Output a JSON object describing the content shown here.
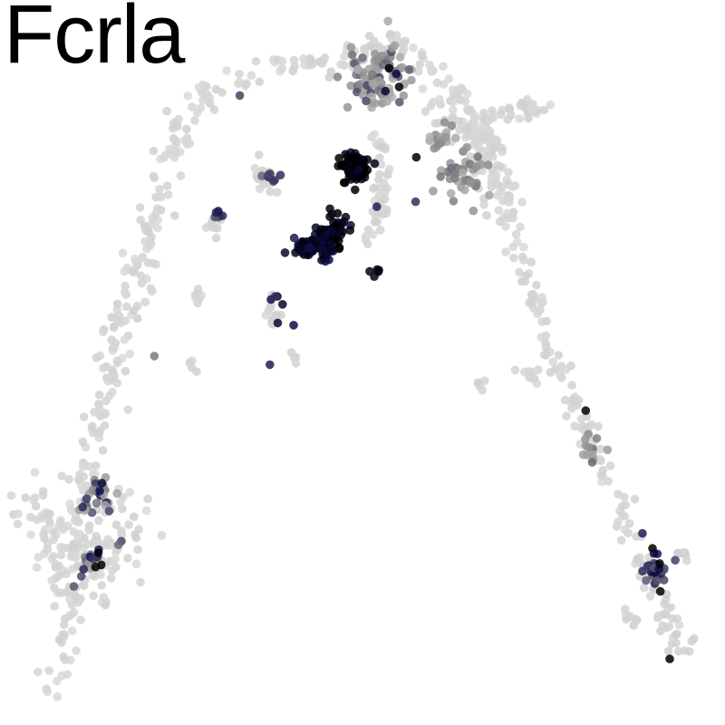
{
  "title": "Fcrla",
  "chart_data": {
    "type": "scatter",
    "title": "Fcrla",
    "xlabel": "",
    "ylabel": "",
    "axes_visible": false,
    "grid": false,
    "legend": "none",
    "xlim": [
      0,
      100
    ],
    "ylim": [
      0,
      100
    ],
    "color_scale": {
      "low": "#dcdcdc",
      "mid": "#8c8c8c",
      "high": "#0d0d4a",
      "max": "#000000"
    },
    "point_opacity": 0.85,
    "background_density": [
      {
        "path": [
          [
            54,
            95
          ],
          [
            52,
            93
          ],
          [
            47,
            92
          ],
          [
            40,
            91
          ],
          [
            34,
            90
          ],
          [
            29,
            88
          ],
          [
            25,
            83
          ],
          [
            23,
            78
          ],
          [
            21,
            71
          ],
          [
            19,
            63
          ],
          [
            17,
            56
          ],
          [
            15,
            49
          ],
          [
            14,
            43
          ],
          [
            12,
            37
          ],
          [
            11,
            30
          ],
          [
            10,
            23
          ],
          [
            9,
            15
          ],
          [
            8,
            9
          ],
          [
            7,
            4
          ]
        ],
        "n": 300,
        "spread": 1.1
      },
      {
        "path": [
          [
            54,
            95
          ],
          [
            57,
            93
          ],
          [
            61,
            90
          ],
          [
            65,
            86
          ],
          [
            68,
            80
          ],
          [
            70,
            72
          ],
          [
            72,
            65
          ],
          [
            74,
            58
          ],
          [
            77,
            50
          ],
          [
            80,
            43
          ],
          [
            83,
            36
          ],
          [
            86,
            29
          ],
          [
            89,
            22
          ],
          [
            92,
            15
          ],
          [
            95,
            9
          ]
        ],
        "n": 230,
        "spread": 0.8
      },
      {
        "path": [
          [
            60,
            88
          ],
          [
            66,
            80
          ],
          [
            69,
            73
          ]
        ],
        "n": 60,
        "spread": 1.6
      },
      {
        "path": [
          [
            64,
            82
          ],
          [
            68,
            84
          ],
          [
            72,
            85
          ],
          [
            75,
            86
          ]
        ],
        "n": 45,
        "spread": 0.8
      },
      {
        "path": [
          [
            4,
            31
          ],
          [
            6,
            28
          ],
          [
            8,
            24
          ],
          [
            10,
            20
          ],
          [
            12,
            18
          ],
          [
            14,
            22
          ],
          [
            16,
            27
          ],
          [
            17,
            31
          ]
        ],
        "n": 140,
        "spread": 2.0
      },
      {
        "path": [
          [
            52,
            82
          ],
          [
            53,
            76
          ],
          [
            52,
            70
          ],
          [
            51,
            66
          ]
        ],
        "n": 45,
        "spread": 0.8
      },
      {
        "path": [
          [
            35,
            77
          ],
          [
            37,
            75
          ],
          [
            38,
            73
          ]
        ],
        "n": 20,
        "spread": 0.7
      },
      {
        "path": [
          [
            29,
            70
          ],
          [
            30,
            68
          ]
        ],
        "n": 10,
        "spread": 0.5
      },
      {
        "path": [
          [
            27,
            60
          ],
          [
            28,
            58
          ]
        ],
        "n": 8,
        "spread": 0.5
      },
      {
        "path": [
          [
            36,
            59
          ],
          [
            38,
            57
          ],
          [
            37,
            55
          ]
        ],
        "n": 14,
        "spread": 0.6
      },
      {
        "path": [
          [
            40,
            51
          ],
          [
            41,
            50
          ]
        ],
        "n": 4,
        "spread": 0.4
      },
      {
        "path": [
          [
            26,
            50
          ],
          [
            27,
            49
          ]
        ],
        "n": 4,
        "spread": 0.4
      },
      {
        "path": [
          [
            72,
            49
          ],
          [
            73,
            48
          ],
          [
            74,
            49
          ]
        ],
        "n": 10,
        "spread": 0.6
      },
      {
        "path": [
          [
            66,
            47
          ],
          [
            67,
            47
          ]
        ],
        "n": 5,
        "spread": 0.4
      },
      {
        "path": [
          [
            87,
            15
          ],
          [
            88,
            14
          ]
        ],
        "n": 8,
        "spread": 0.5
      },
      {
        "path": [
          [
            94,
            24
          ],
          [
            95,
            23
          ]
        ],
        "n": 6,
        "spread": 0.4
      }
    ],
    "expression_clusters": [
      {
        "center": [
          52,
          90
        ],
        "n": 95,
        "spread": 2.2,
        "level": 0.48,
        "jitter": 0.22
      },
      {
        "center": [
          49,
          77
        ],
        "n": 75,
        "spread": 1.1,
        "level": 0.97,
        "jitter": 0.05
      },
      {
        "center": [
          46,
          68
        ],
        "n": 55,
        "spread": 1.1,
        "level": 0.95,
        "jitter": 0.06
      },
      {
        "center": [
          44,
          66
        ],
        "n": 40,
        "spread": 1.0,
        "level": 0.93,
        "jitter": 0.07
      },
      {
        "center": [
          42,
          66
        ],
        "n": 24,
        "spread": 0.8,
        "level": 0.9,
        "jitter": 0.08
      },
      {
        "center": [
          64,
          76
        ],
        "n": 40,
        "spread": 1.7,
        "level": 0.45,
        "jitter": 0.15
      },
      {
        "center": [
          61,
          81
        ],
        "n": 18,
        "spread": 1.2,
        "level": 0.38,
        "jitter": 0.15
      },
      {
        "center": [
          13,
          31
        ],
        "n": 24,
        "spread": 1.4,
        "level": 0.55,
        "jitter": 0.25
      },
      {
        "center": [
          12,
          23
        ],
        "n": 14,
        "spread": 1.0,
        "level": 0.6,
        "jitter": 0.25
      },
      {
        "center": [
          91,
          21
        ],
        "n": 24,
        "spread": 0.9,
        "level": 0.78,
        "jitter": 0.15
      },
      {
        "center": [
          82,
          38
        ],
        "n": 12,
        "spread": 1.0,
        "level": 0.45,
        "jitter": 0.15
      },
      {
        "center": [
          37,
          76
        ],
        "n": 7,
        "spread": 0.6,
        "level": 0.75,
        "jitter": 0.15
      },
      {
        "center": [
          30,
          70
        ],
        "n": 4,
        "spread": 0.4,
        "level": 0.7,
        "jitter": 0.1
      },
      {
        "center": [
          52,
          63
        ],
        "n": 4,
        "spread": 0.5,
        "level": 0.95,
        "jitter": 0.05
      },
      {
        "center": [
          38,
          59
        ],
        "n": 3,
        "spread": 0.5,
        "level": 0.9,
        "jitter": 0.05
      }
    ],
    "x": [
      53.7,
      54.7,
      55.1,
      53.2,
      57.5,
      32.9,
      36.8,
      57.4,
      52.0,
      49.5,
      51.0,
      39.2,
      37.8,
      40.4,
      38.2,
      37.1,
      29.9,
      29.6,
      81.1,
      82.0,
      89.0,
      90.4,
      90.6,
      91.3,
      91.4,
      91.5,
      92.8,
      13.7,
      13.4,
      14.7,
      13.2,
      12.8,
      13.6,
      16.4,
      16.0,
      9.8,
      21.0
    ],
    "y": [
      91.0,
      90.2,
      88.4,
      87.8,
      78.6,
      87.2,
      75.9,
      72.4,
      71.7,
      76.9,
      62.7,
      65.3,
      59.2,
      55.2,
      55.5,
      49.7,
      71.1,
      70.9,
      43.3,
      36.1,
      26.2,
      24.1,
      23.4,
      21.2,
      22.0,
      18.1,
      8.7,
      33.2,
      32.1,
      29.3,
      23.5,
      21.5,
      21.8,
      25.1,
      24.6,
      18.8,
      50.9
    ],
    "values": [
      1.0,
      0.85,
      1.0,
      0.9,
      1.0,
      0.7,
      0.7,
      0.75,
      0.8,
      0.9,
      0.95,
      0.9,
      0.75,
      0.85,
      0.9,
      0.8,
      0.85,
      0.8,
      1.0,
      0.6,
      0.8,
      1.0,
      0.9,
      0.85,
      1.0,
      1.0,
      1.0,
      0.9,
      0.85,
      0.7,
      1.0,
      1.0,
      1.0,
      0.7,
      0.6,
      0.65,
      0.55
    ]
  }
}
